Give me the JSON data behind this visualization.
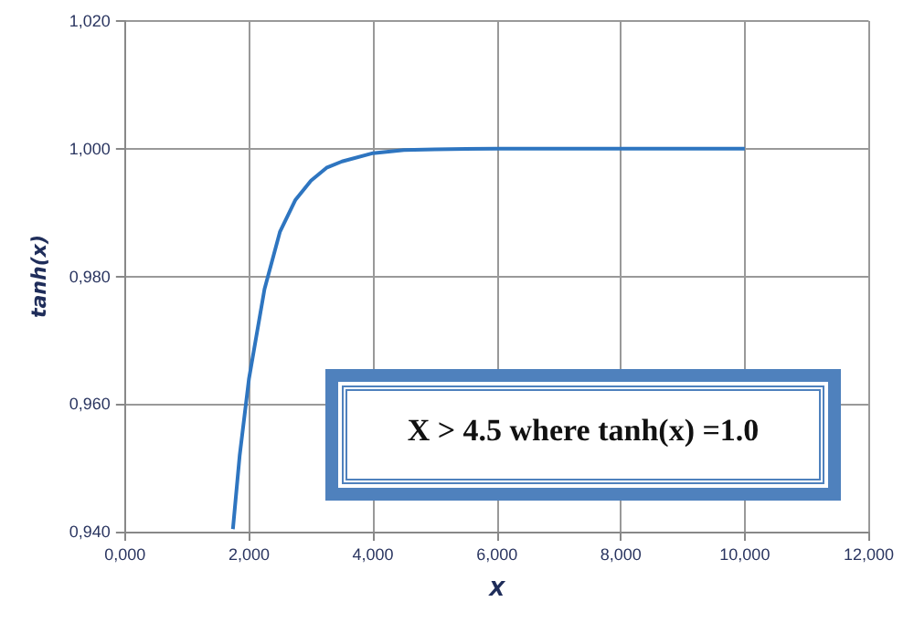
{
  "chart_data": {
    "type": "line",
    "xlabel": "X",
    "ylabel": "tanh(x)",
    "x": [
      1.74,
      1.85,
      2,
      2.25,
      2.5,
      2.75,
      3,
      3.25,
      3.5,
      4,
      4.5,
      5,
      6,
      7,
      8,
      9,
      10
    ],
    "series": [
      {
        "color": "#2e75c0",
        "values": [
          0.9404,
          0.952,
          0.964,
          0.978,
          0.987,
          0.992,
          0.995,
          0.997,
          0.998,
          0.9993,
          0.9998,
          0.9999,
          1.0,
          1.0,
          1.0,
          1.0,
          1.0
        ]
      }
    ],
    "xlim": [
      0,
      12
    ],
    "xticks": [
      {
        "value": 0,
        "label": "0,000"
      },
      {
        "value": 2,
        "label": "2,000"
      },
      {
        "value": 4,
        "label": "4,000"
      },
      {
        "value": 6,
        "label": "6,000"
      },
      {
        "value": 8,
        "label": "8,000"
      },
      {
        "value": 10,
        "label": "10,000"
      },
      {
        "value": 12,
        "label": "12,000"
      }
    ],
    "ylim": [
      0.94,
      1.02
    ],
    "yticks": [
      {
        "value": 0.94,
        "label": "0,940"
      },
      {
        "value": 0.96,
        "label": "0,960"
      },
      {
        "value": 0.98,
        "label": "0,980"
      },
      {
        "value": 1.0,
        "label": "1,000"
      },
      {
        "value": 1.02,
        "label": "1,020"
      }
    ],
    "grid": true,
    "marker": "none",
    "line_style": "solid",
    "annotations": [
      "X > 4.5 where tanh(x) =1.0"
    ]
  }
}
